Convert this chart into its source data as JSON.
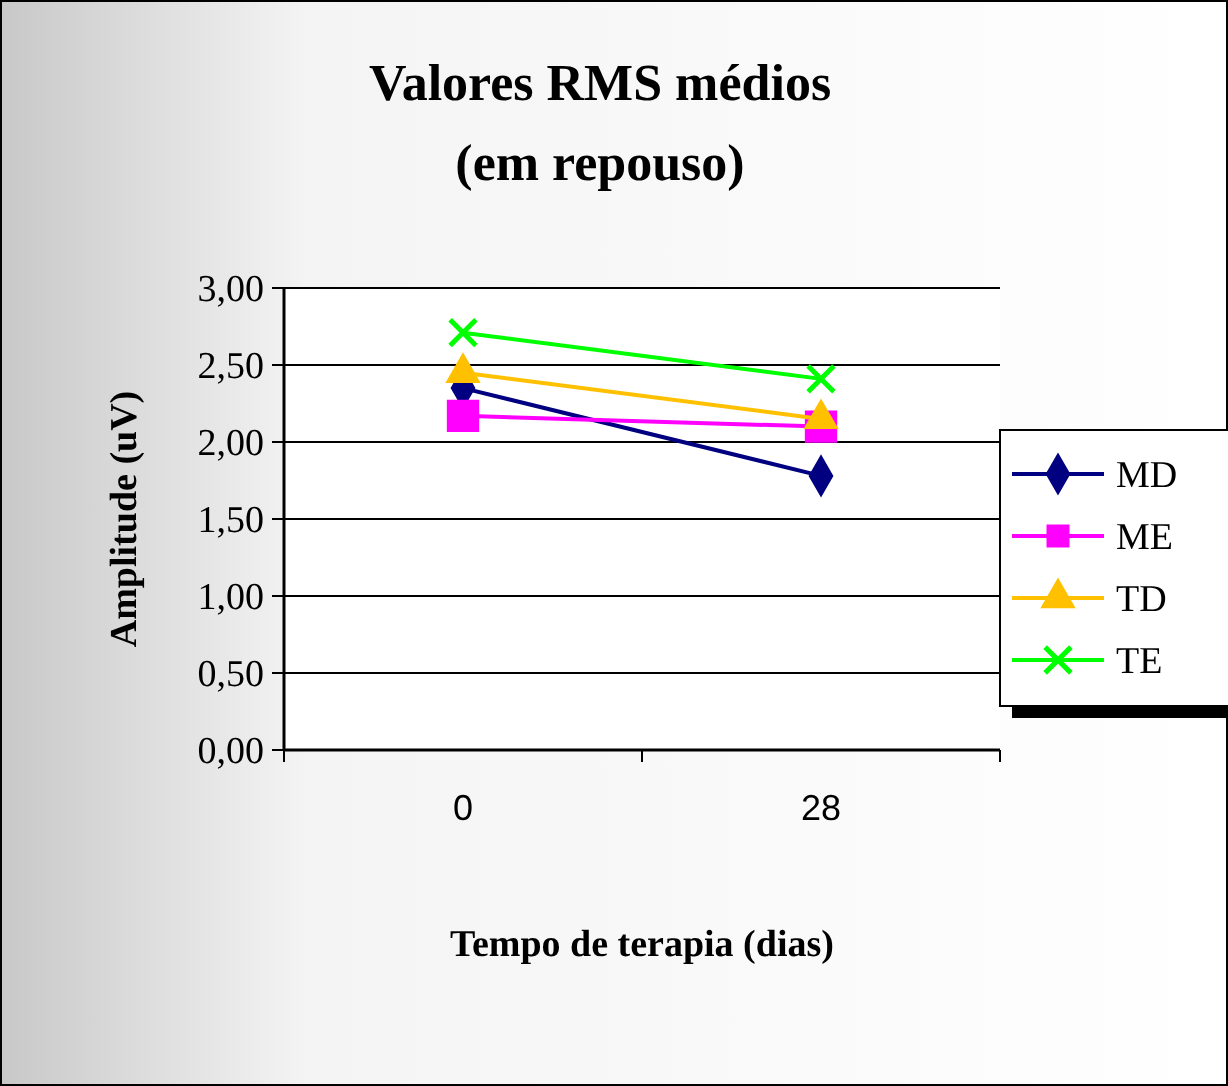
{
  "chart_data": {
    "type": "line",
    "title": "Valores RMS médios",
    "subtitle": "(em repouso)",
    "xlabel": "Tempo de terapia (dias)",
    "ylabel": "Amplitude (uV)",
    "categories": [
      "0",
      "28"
    ],
    "series": [
      {
        "name": "MD",
        "color": "#000080",
        "marker": "diamond",
        "values": [
          2.35,
          1.78
        ]
      },
      {
        "name": "ME",
        "color": "#ff00ff",
        "marker": "square",
        "values": [
          2.17,
          2.1
        ]
      },
      {
        "name": "TD",
        "color": "#ffc000",
        "marker": "triangle",
        "values": [
          2.45,
          2.15
        ]
      },
      {
        "name": "TE",
        "color": "#00ff00",
        "marker": "cross",
        "values": [
          2.71,
          2.41
        ]
      }
    ],
    "ylim": [
      0,
      3
    ],
    "yticks": [
      {
        "value": 0,
        "label": "0,00"
      },
      {
        "value": 0.5,
        "label": "0,50"
      },
      {
        "value": 1,
        "label": "1,00"
      },
      {
        "value": 1.5,
        "label": "1,50"
      },
      {
        "value": 2,
        "label": "2,00"
      },
      {
        "value": 2.5,
        "label": "2,50"
      },
      {
        "value": 3,
        "label": "3,00"
      }
    ],
    "grid": "y",
    "legend": "right"
  }
}
